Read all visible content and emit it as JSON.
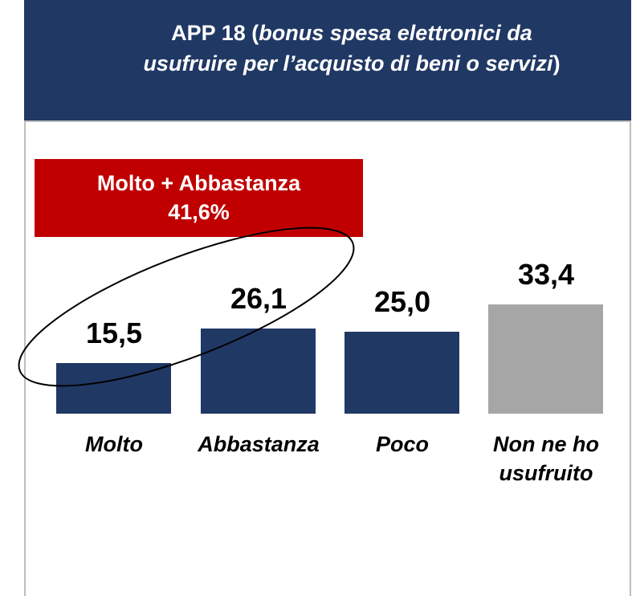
{
  "chart_data": {
    "type": "bar",
    "title": [
      "APP 18 (",
      "bonus spesa elettronici da",
      "usufruire per l’acquisto di beni o servizi",
      ")"
    ],
    "annotation": {
      "text": "Molto + Abbastanza",
      "value": 41.6,
      "value_label": "41,6%"
    },
    "categories": [
      "Molto",
      "Abbastanza",
      "Poco",
      "Non ne ho usufruito"
    ],
    "values": [
      15.5,
      26.1,
      25.0,
      33.4
    ],
    "value_labels": [
      "15,5",
      "26,1",
      "25,0",
      "33,4"
    ],
    "colors": [
      "#203864",
      "#203864",
      "#203864",
      "#a6a6a6"
    ]
  }
}
